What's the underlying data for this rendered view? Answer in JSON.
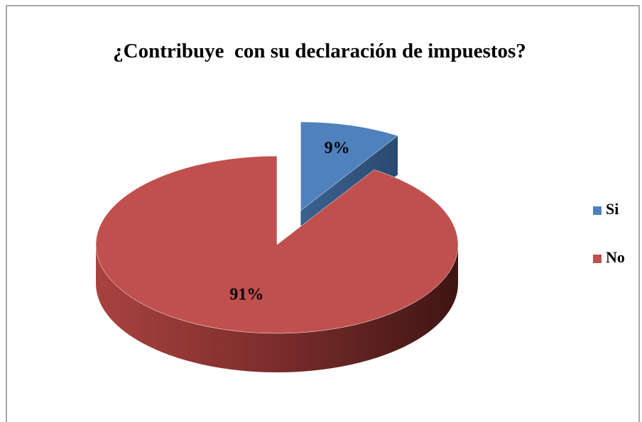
{
  "chart_data": {
    "type": "pie",
    "title": "¿Contribuye  con su declaración de impuestos?",
    "categories": [
      "Si",
      "No"
    ],
    "values": [
      9,
      91
    ],
    "value_labels": [
      "9%",
      "91%"
    ],
    "colors": [
      "#4f81bd",
      "#c0504d"
    ],
    "legend": "right"
  }
}
